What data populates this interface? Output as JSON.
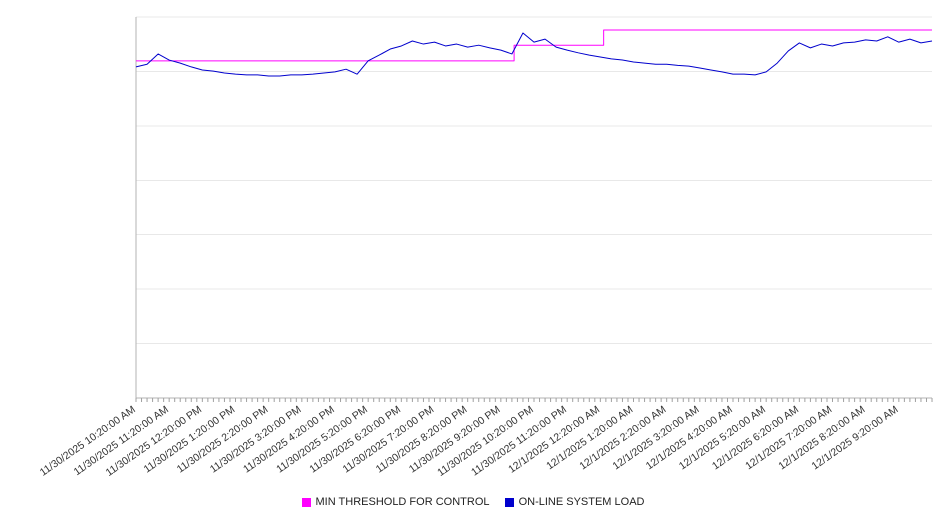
{
  "chart_data": {
    "type": "line",
    "title": "",
    "xlabel": "",
    "ylabel": "",
    "grid": "horizontal-only",
    "y_axis_labels_visible": false,
    "y_gridline_divisions": 7,
    "ylim": [
      0,
      100
    ],
    "xlim": [
      0,
      24
    ],
    "x_minor_tick_step_hours": 0.16667,
    "legend_position": "bottom-center",
    "note": "y-axis has no visible labels in source; series values expressed as percent of plot height",
    "x_tick_labels": [
      "11/30/2025 10:20:00 AM",
      "11/30/2025 11:20:00 AM",
      "11/30/2025 12:20:00 PM",
      "11/30/2025 1:20:00 PM",
      "11/30/2025 2:20:00 PM",
      "11/30/2025 3:20:00 PM",
      "11/30/2025 4:20:00 PM",
      "11/30/2025 5:20:00 PM",
      "11/30/2025 6:20:00 PM",
      "11/30/2025 7:20:00 PM",
      "11/30/2025 8:20:00 PM",
      "11/30/2025 9:20:00 PM",
      "11/30/2025 10:20:00 PM",
      "11/30/2025 11:20:00 PM",
      "12/1/2025 12:20:00 AM",
      "12/1/2025 1:20:00 AM",
      "12/1/2025 2:20:00 AM",
      "12/1/2025 3:20:00 AM",
      "12/1/2025 4:20:00 AM",
      "12/1/2025 5:20:00 AM",
      "12/1/2025 6:20:00 AM",
      "12/1/2025 7:20:00 AM",
      "12/1/2025 8:20:00 AM",
      "12/1/2025 9:20:00 AM"
    ],
    "series": [
      {
        "name": "MIN THRESHOLD FOR CONTROL",
        "color": "#ff00ff",
        "style": "step",
        "points": [
          [
            0,
            88.5
          ],
          [
            11.4,
            88.5
          ],
          [
            11.4,
            92.6
          ],
          [
            14.1,
            92.6
          ],
          [
            14.1,
            96.6
          ],
          [
            24,
            96.6
          ]
        ]
      },
      {
        "name": "ON-LINE SYSTEM LOAD",
        "color": "#0000cd",
        "style": "line",
        "x_start": 0,
        "x_end": 24,
        "values": [
          86.9,
          87.6,
          90.3,
          88.7,
          87.9,
          86.9,
          86.1,
          85.8,
          85.3,
          85.0,
          84.8,
          84.8,
          84.5,
          84.5,
          84.8,
          84.8,
          85.0,
          85.3,
          85.6,
          86.3,
          85.0,
          88.5,
          90.0,
          91.6,
          92.4,
          93.7,
          92.9,
          93.4,
          92.4,
          92.9,
          92.1,
          92.6,
          91.9,
          91.3,
          90.3,
          95.8,
          93.4,
          94.2,
          92.1,
          91.3,
          90.6,
          90.0,
          89.5,
          89.0,
          88.7,
          88.2,
          87.9,
          87.6,
          87.6,
          87.3,
          87.1,
          86.6,
          86.1,
          85.6,
          85.0,
          85.0,
          84.8,
          85.6,
          87.9,
          91.1,
          93.2,
          91.9,
          92.9,
          92.4,
          93.2,
          93.4,
          94.0,
          93.7,
          94.8,
          93.4,
          94.2,
          93.2,
          93.7
        ]
      }
    ],
    "colors": {
      "gridline": "#e8e8e8",
      "axis": "#b3b3b3",
      "tick": "#a0a0a0",
      "tick_label": "#333333"
    }
  },
  "legend": {
    "items": [
      {
        "label": "MIN THRESHOLD FOR CONTROL",
        "color": "#ff00ff"
      },
      {
        "label": "ON-LINE SYSTEM LOAD",
        "color": "#0000cd"
      }
    ]
  }
}
